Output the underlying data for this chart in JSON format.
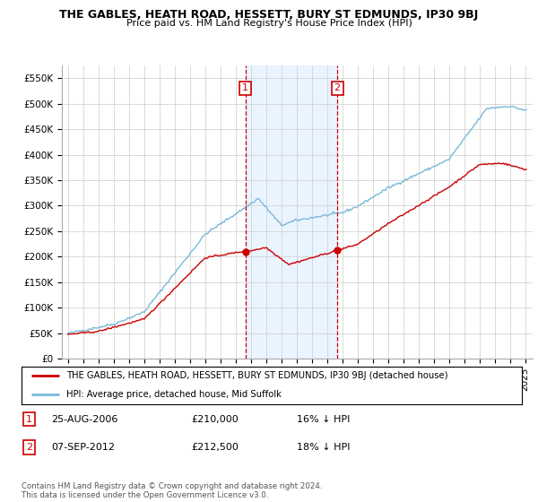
{
  "title": "THE GABLES, HEATH ROAD, HESSETT, BURY ST EDMUNDS, IP30 9BJ",
  "subtitle": "Price paid vs. HM Land Registry's House Price Index (HPI)",
  "hpi_color": "#7ab8d9",
  "price_color": "#cc0000",
  "background_color": "#ffffff",
  "grid_color": "#cccccc",
  "shade_color": "#ddeeff",
  "ylim": [
    0,
    575000
  ],
  "yticks": [
    0,
    50000,
    100000,
    150000,
    200000,
    250000,
    300000,
    350000,
    400000,
    450000,
    500000,
    550000
  ],
  "ytick_labels": [
    "£0",
    "£50K",
    "£100K",
    "£150K",
    "£200K",
    "£250K",
    "£300K",
    "£350K",
    "£400K",
    "£450K",
    "£500K",
    "£550K"
  ],
  "sale1_date": 2006.65,
  "sale1_price": 210000,
  "sale2_date": 2012.68,
  "sale2_price": 212500,
  "legend_line1": "THE GABLES, HEATH ROAD, HESSETT, BURY ST EDMUNDS, IP30 9BJ (detached house)",
  "legend_line2": "HPI: Average price, detached house, Mid Suffolk",
  "footer": "Contains HM Land Registry data © Crown copyright and database right 2024.\nThis data is licensed under the Open Government Licence v3.0."
}
